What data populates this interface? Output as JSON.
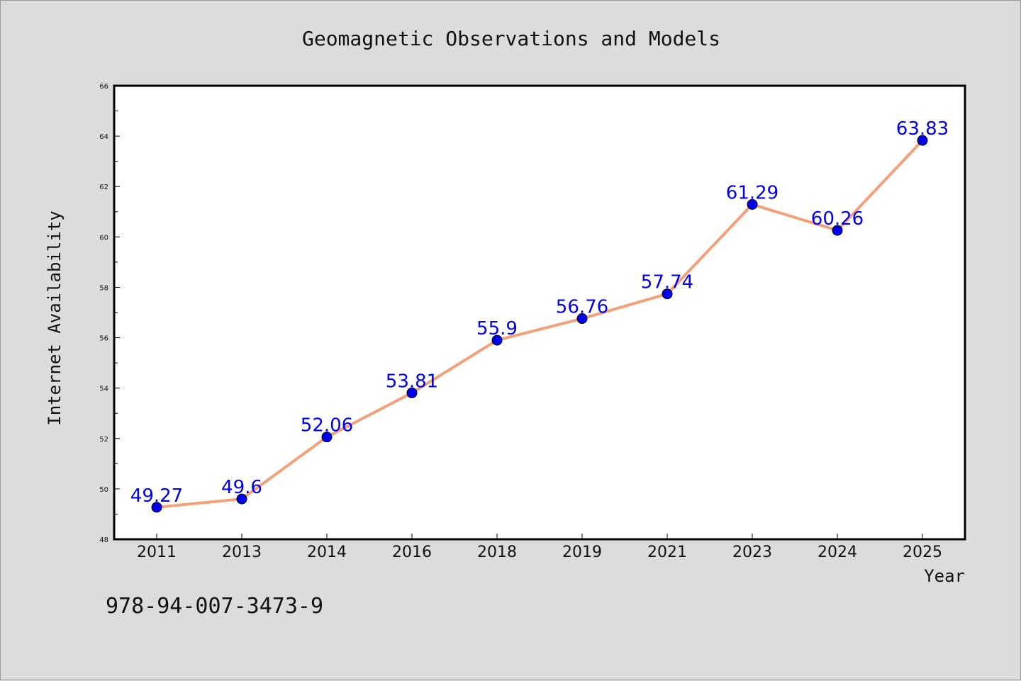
{
  "chart_data": {
    "type": "line",
    "title": "Geomagnetic Observations and Models",
    "xlabel": "Year",
    "ylabel": "Internet Availability",
    "categories": [
      "2011",
      "2013",
      "2014",
      "2016",
      "2018",
      "2019",
      "2021",
      "2023",
      "2024",
      "2025"
    ],
    "series": [
      {
        "values": [
          49.27,
          49.6,
          52.06,
          53.81,
          55.9,
          56.76,
          57.74,
          61.29,
          60.26,
          63.83
        ],
        "labels": [
          "49.27",
          "49.6",
          "52.06",
          "53.81",
          "55.9",
          "56.76",
          "57.74",
          "61.29",
          "60.26",
          "63.83"
        ],
        "line_color": "#f4a07a",
        "marker_color": "#0000ee",
        "label_color": "#0000ee"
      }
    ],
    "ylim": [
      48,
      66
    ],
    "yticks": [
      48,
      50,
      52,
      54,
      56,
      58,
      60,
      62,
      64,
      66
    ],
    "grid": false,
    "legend": "none"
  },
  "footer": {
    "code": "978-94-007-3473-9"
  },
  "colors": {
    "background": "#dcdcdc",
    "plot_area": "#ffffff",
    "axis": "#000000"
  }
}
